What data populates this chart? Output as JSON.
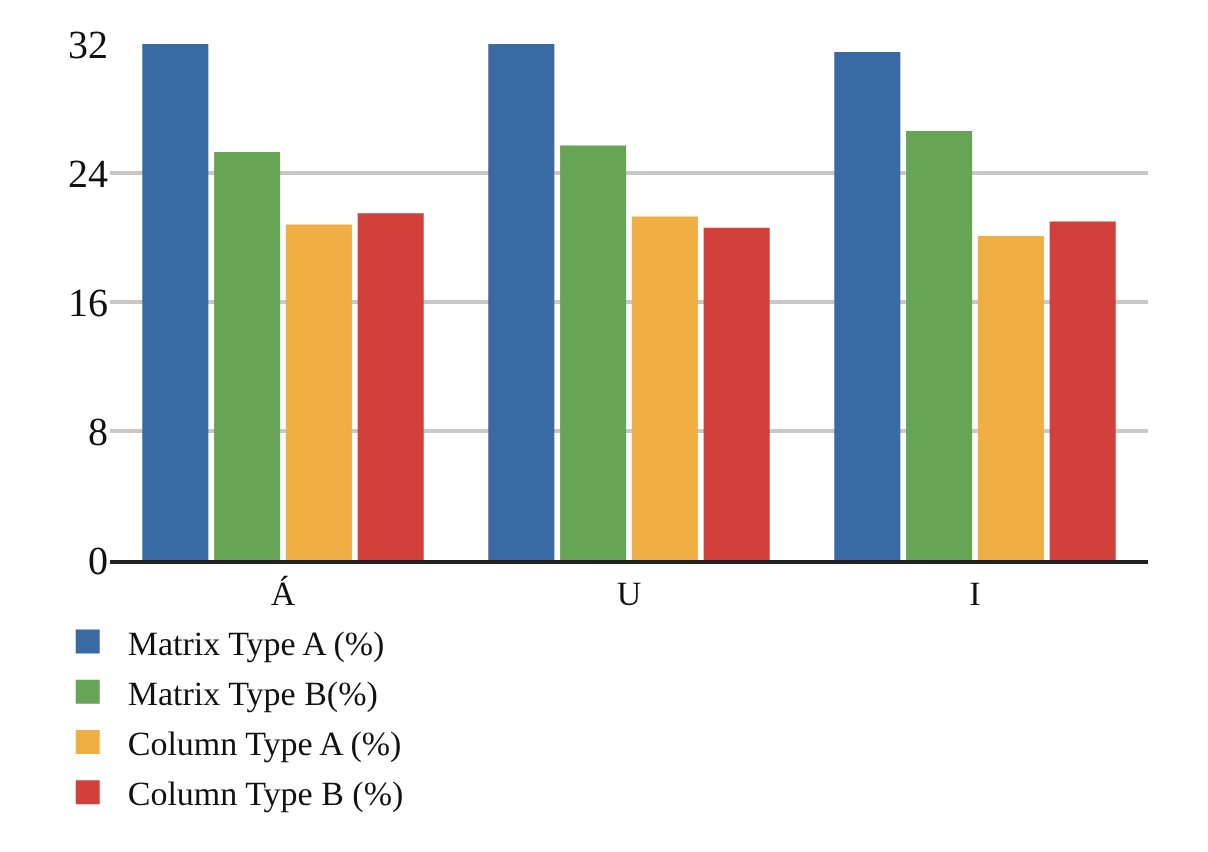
{
  "chart_data": {
    "type": "bar",
    "categories": [
      "Á",
      "U",
      "I"
    ],
    "series": [
      {
        "name": "Matrix Type A (%)",
        "color": "#3a6aa4",
        "values": [
          32,
          32,
          31.5
        ]
      },
      {
        "name": "Matrix Type B(%)",
        "color": "#65a555",
        "values": [
          25.3,
          25.7,
          26.6
        ]
      },
      {
        "name": "Column Type A (%)",
        "color": "#f0ae45",
        "values": [
          20.8,
          21.3,
          20.1
        ]
      },
      {
        "name": "Column Type B (%)",
        "color": "#d2403b",
        "values": [
          21.5,
          20.6,
          21.0
        ]
      }
    ],
    "ylim": [
      0,
      32
    ],
    "yticks": [
      0,
      8,
      16,
      24,
      32
    ],
    "grid": "y",
    "legend": "bottom"
  }
}
